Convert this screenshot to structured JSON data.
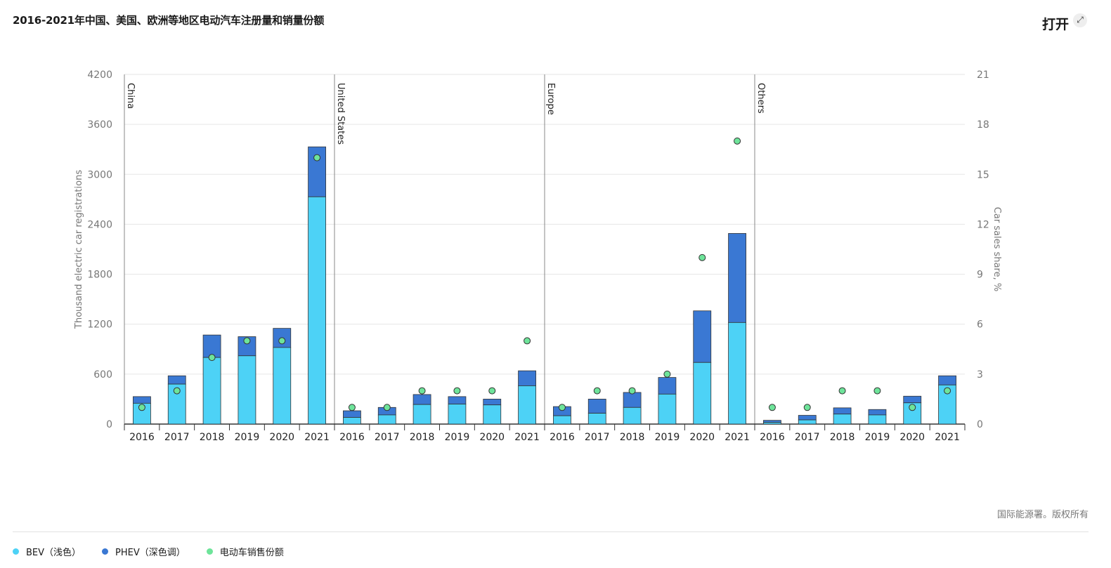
{
  "header": {
    "title": "2016-2021年中国、美国、欧洲等地区电动汽车注册量和销量份额",
    "open_label": "打开",
    "expand_icon": "expand-icon"
  },
  "footer": {
    "copyright": "国际能源署。版权所有"
  },
  "legend": [
    {
      "label": "BEV（浅色）",
      "color": "#4dd2f6"
    },
    {
      "label": "PHEV（深色调）",
      "color": "#3a78d3"
    },
    {
      "label": "电动车销售份额",
      "color": "#6ee49a"
    }
  ],
  "chart_data": {
    "type": "bar",
    "stacked": true,
    "ylabel": "Thousand electric car registrations",
    "y2label": "Car sales share, %",
    "ylim": [
      0,
      4200
    ],
    "y2lim": [
      0,
      21
    ],
    "yticks": [
      0,
      600,
      1200,
      1800,
      2400,
      3000,
      3600,
      4200
    ],
    "y2ticks": [
      0,
      3,
      6,
      9,
      12,
      15,
      18,
      21
    ],
    "grid": true,
    "legend_position": "bottom",
    "categories": [
      "2016",
      "2017",
      "2018",
      "2019",
      "2020",
      "2021"
    ],
    "groups": [
      {
        "name": "China",
        "bev": [
          250,
          480,
          800,
          820,
          920,
          2730
        ],
        "phev": [
          80,
          100,
          270,
          230,
          230,
          600
        ],
        "share": [
          1,
          2,
          4,
          5,
          5,
          16
        ]
      },
      {
        "name": "United States",
        "bev": [
          80,
          110,
          235,
          240,
          230,
          460
        ],
        "phev": [
          80,
          90,
          120,
          90,
          70,
          180
        ],
        "share": [
          1,
          1,
          2,
          2,
          2,
          5
        ]
      },
      {
        "name": "Europe",
        "bev": [
          100,
          130,
          200,
          360,
          740,
          1220
        ],
        "phev": [
          110,
          170,
          180,
          200,
          620,
          1070
        ],
        "share": [
          1,
          2,
          2,
          3,
          10,
          17
        ]
      },
      {
        "name": "Others",
        "bev": [
          20,
          50,
          120,
          110,
          255,
          470
        ],
        "phev": [
          25,
          55,
          75,
          65,
          80,
          110
        ],
        "share": [
          1,
          1,
          2,
          2,
          1,
          2
        ]
      }
    ],
    "colors": {
      "bev": "#4dd2f6",
      "phev": "#3a78d3",
      "share": "#6ee49a"
    }
  }
}
